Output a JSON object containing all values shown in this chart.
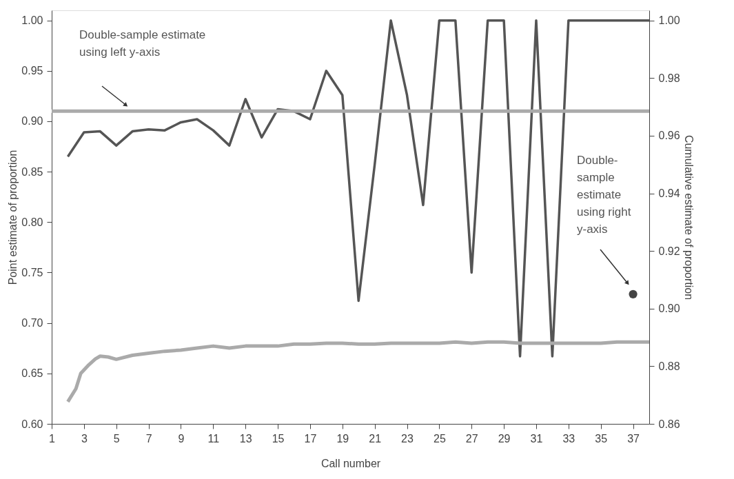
{
  "chart_data": {
    "type": "line",
    "xlabel": "Call number",
    "ylabel": "Point estimate of proportion",
    "y2label": "Cumulative estimate of proportion",
    "xlim": [
      1,
      38
    ],
    "xticks": [
      1,
      3,
      5,
      7,
      9,
      11,
      13,
      15,
      17,
      19,
      21,
      23,
      25,
      27,
      29,
      31,
      33,
      35,
      37
    ],
    "ylim": [
      0.6,
      1.01
    ],
    "yticks": [
      {
        "value": 0.6,
        "label": "0.60"
      },
      0.65,
      {
        "value": 0.7,
        "label": "0.70"
      },
      0.75,
      {
        "value": 0.8,
        "label": "0.80"
      },
      0.85,
      {
        "value": 0.9,
        "label": "0.90"
      },
      0.95,
      {
        "value": 1.0,
        "label": "1.00"
      }
    ],
    "y2lim": [
      0.86,
      1.0035
    ],
    "y2ticks": [
      0.86,
      0.88,
      {
        "value": 0.9,
        "label": "0.90"
      },
      0.92,
      0.94,
      0.96,
      0.98,
      {
        "value": 1.0,
        "label": "1.00"
      }
    ],
    "grid": false,
    "series": [
      {
        "color": "#555555",
        "x": [
          2,
          3,
          4,
          5,
          6,
          7,
          8,
          9,
          10,
          11,
          12,
          13,
          14,
          15,
          16,
          17,
          18,
          19,
          20,
          21,
          22,
          23,
          24,
          25,
          26,
          27,
          28,
          29,
          30,
          31,
          32,
          33,
          34,
          35,
          36,
          37,
          38
        ],
        "values": [
          0.865,
          0.889,
          0.89,
          0.876,
          0.89,
          0.892,
          0.891,
          0.899,
          0.902,
          0.891,
          0.876,
          0.922,
          0.884,
          0.912,
          0.91,
          0.902,
          0.95,
          0.926,
          0.722,
          0.857,
          1.0,
          0.926,
          0.817,
          1.0,
          1.0,
          0.75,
          1.0,
          1.0,
          0.667,
          1.0,
          0.667,
          1.0,
          1.0,
          1.0,
          1.0,
          1.0,
          1.0
        ]
      },
      {
        "axis": "y2",
        "color": "#aaaaaa",
        "x": [
          2,
          2.5,
          2.8,
          3.3,
          3.7,
          4,
          4.5,
          5,
          6,
          7,
          8,
          9,
          10,
          11,
          12,
          13,
          14,
          15,
          16,
          17,
          18,
          19,
          20,
          21,
          22,
          23,
          24,
          25,
          26,
          27,
          28,
          29,
          30,
          31,
          32,
          33,
          34,
          35,
          36,
          37,
          38
        ],
        "values": [
          0.8677,
          0.8722,
          0.8775,
          0.8805,
          0.8825,
          0.8835,
          0.8832,
          0.8824,
          0.8838,
          0.8845,
          0.8852,
          0.8856,
          0.8863,
          0.887,
          0.8863,
          0.887,
          0.887,
          0.887,
          0.8877,
          0.8877,
          0.888,
          0.888,
          0.8877,
          0.8877,
          0.888,
          0.888,
          0.888,
          0.888,
          0.8884,
          0.888,
          0.8884,
          0.8884,
          0.888,
          0.888,
          0.888,
          0.888,
          0.888,
          0.888,
          0.8884,
          0.8884,
          0.8884
        ]
      },
      {
        "type": "scatter",
        "axis": "y2",
        "color": "#444444",
        "x": [
          37
        ],
        "values": [
          0.905
        ]
      }
    ],
    "ref_lines": [
      {
        "axis": "y",
        "value": 0.91,
        "color": "#aaaaaa"
      }
    ],
    "annotations": [
      "Double-sample estimate using left y-axis",
      "Double-sample estimate using right y-axis"
    ]
  }
}
